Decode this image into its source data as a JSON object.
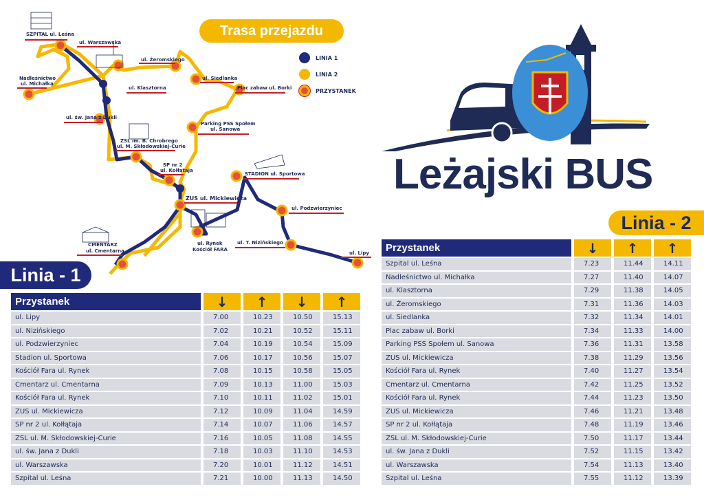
{
  "route_title": "Trasa przejazdu",
  "legend": {
    "line1": "LINIA 1",
    "line2": "LINIA 2",
    "stop": "PRZYSTANEK",
    "colors": {
      "line1": "#1f2a7a",
      "line2": "#f5b800",
      "stop": "#e5503a"
    }
  },
  "map_labels": {
    "szpital": "SZPITAL ul. Leśna",
    "warszawska": "ul. Warszawska",
    "nadlesnictwo_1": "Nadleśnictwo",
    "nadlesnictwo_2": "ul. Michałka",
    "zeromskiego": "ul. Żeromskiego",
    "klasztorna": "ul. Klasztorna",
    "siedlanka": "ul. Siedlanka",
    "plac": "Plac zabaw ul. Borki",
    "dukli": "ul. św. Jana z Dukli",
    "parking_1": "Parking PSS Społem",
    "parking_2": "ul. Sanowa",
    "zsl_1": "ZSL im. B. Chrobrego",
    "zsl_2": "ul. M. Skłodowskiej-Curie",
    "sp_1": "SP nr 2",
    "sp_2": "ul. Kołłątaja",
    "stadion": "STADION ul. Sportowa",
    "zus": "ZUS ul. Mickiewicza",
    "podzwierzyniec": "ul. Podzwierzyniec",
    "cmentarz_1": "CMENTARZ",
    "cmentarz_2": "ul. Cmentarna",
    "rynek_1": "ul. Rynek",
    "rynek_2": "Kościół FARA",
    "nizinskiego": "ul. T. Nizińskiego",
    "lipy": "ul. Lipy"
  },
  "brand": "Leżajski BUS",
  "line1": {
    "badge": "Linia - 1",
    "header_stop": "Przystanek",
    "directions": [
      "↓",
      "↑",
      "↓",
      "↑"
    ],
    "rows": [
      {
        "stop": "ul. Lipy",
        "times": [
          "7.00",
          "10.23",
          "10.50",
          "15.13"
        ]
      },
      {
        "stop": "ul. Nizińskiego",
        "times": [
          "7.02",
          "10.21",
          "10.52",
          "15.11"
        ]
      },
      {
        "stop": "ul. Podzwierzyniec",
        "times": [
          "7.04",
          "10.19",
          "10.54",
          "15.09"
        ]
      },
      {
        "stop": "Stadion ul. Sportowa",
        "times": [
          "7.06",
          "10.17",
          "10.56",
          "15.07"
        ]
      },
      {
        "stop": "Kościół Fara ul. Rynek",
        "times": [
          "7.08",
          "10.15",
          "10.58",
          "15.05"
        ]
      },
      {
        "stop": "Cmentarz ul. Cmentarna",
        "times": [
          "7.09",
          "10.13",
          "11.00",
          "15.03"
        ]
      },
      {
        "stop": "Kościół Fara ul. Rynek",
        "times": [
          "7.10",
          "10.11",
          "11.02",
          "15.01"
        ]
      },
      {
        "stop": "ZUS ul. Mickiewicza",
        "times": [
          "7.12",
          "10.09",
          "11.04",
          "14.59"
        ]
      },
      {
        "stop": "SP nr 2 ul. Kołłątaja",
        "times": [
          "7.14",
          "10.07",
          "11.06",
          "14.57"
        ]
      },
      {
        "stop": "ZSL ul. M. Skłodowskiej-Curie",
        "times": [
          "7.16",
          "10.05",
          "11.08",
          "14.55"
        ]
      },
      {
        "stop": "ul. św. Jana z Dukli",
        "times": [
          "7.18",
          "10.03",
          "11.10",
          "14.53"
        ]
      },
      {
        "stop": "ul. Warszawska",
        "times": [
          "7.20",
          "10.01",
          "11.12",
          "14.51"
        ]
      },
      {
        "stop": "Szpital ul. Leśna",
        "times": [
          "7.21",
          "10.00",
          "11.13",
          "14.50"
        ]
      }
    ]
  },
  "line2": {
    "badge": "Linia - 2",
    "header_stop": "Przystanek",
    "directions": [
      "↓",
      "↑",
      "↑"
    ],
    "rows": [
      {
        "stop": "Szpital ul. Leśna",
        "times": [
          "7.23",
          "11.44",
          "14.11"
        ]
      },
      {
        "stop": "Nadleśnictwo ul. Michałka",
        "times": [
          "7.27",
          "11.40",
          "14.07"
        ]
      },
      {
        "stop": "ul. Klasztorna",
        "times": [
          "7.29",
          "11.38",
          "14.05"
        ]
      },
      {
        "stop": "ul. Żeromskiego",
        "times": [
          "7.31",
          "11.36",
          "14.03"
        ]
      },
      {
        "stop": "ul. Siedlanka",
        "times": [
          "7.32",
          "11.34",
          "14.01"
        ]
      },
      {
        "stop": "Plac zabaw ul. Borki",
        "times": [
          "7.34",
          "11.33",
          "14.00"
        ]
      },
      {
        "stop": "Parking PSS Społem ul. Sanowa",
        "times": [
          "7.36",
          "11.31",
          "13.58"
        ]
      },
      {
        "stop": "ZUS ul. Mickiewicza",
        "times": [
          "7.38",
          "11.29",
          "13.56"
        ]
      },
      {
        "stop": "Kościół Fara ul. Rynek",
        "times": [
          "7.40",
          "11.27",
          "13.54"
        ]
      },
      {
        "stop": "Cmentarz ul. Cmentarna",
        "times": [
          "7.42",
          "11.25",
          "13.52"
        ]
      },
      {
        "stop": "Kościół Fara ul. Rynek",
        "times": [
          "7.44",
          "11.23",
          "13.50"
        ]
      },
      {
        "stop": "ZUS ul. Mickiewicza",
        "times": [
          "7.46",
          "11.21",
          "13.48"
        ]
      },
      {
        "stop": "SP nr 2 ul. Kołłątaja",
        "times": [
          "7.48",
          "11.19",
          "13.46"
        ]
      },
      {
        "stop": "ZSL ul. M. Skłodowskiej-Curie",
        "times": [
          "7.50",
          "11.17",
          "13.44"
        ]
      },
      {
        "stop": "ul. św. Jana z Dukli",
        "times": [
          "7.52",
          "11.15",
          "13.42"
        ]
      },
      {
        "stop": "ul. Warszawska",
        "times": [
          "7.54",
          "11.13",
          "13.40"
        ]
      },
      {
        "stop": "Szpital ul. Leśna",
        "times": [
          "7.55",
          "11.12",
          "13.39"
        ]
      }
    ]
  }
}
